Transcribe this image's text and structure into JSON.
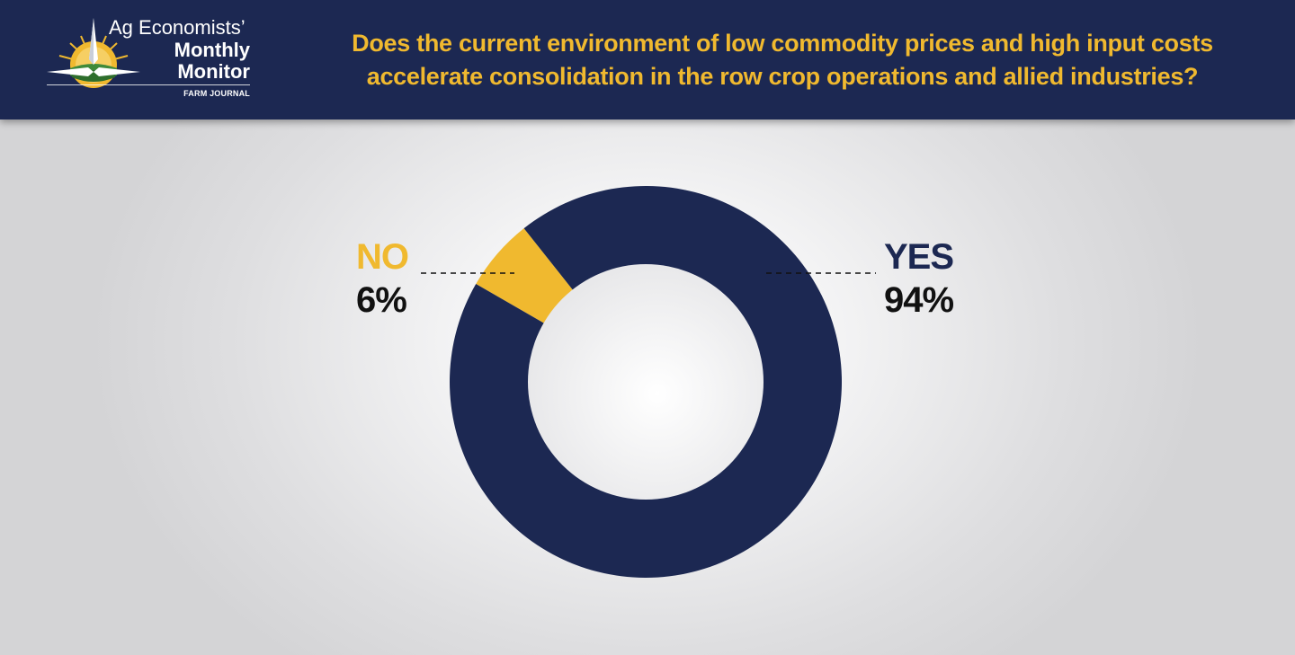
{
  "header": {
    "logo": {
      "line1": "Ag Economists’",
      "line2": "Monthly",
      "line3": "Monitor",
      "publisher": "FARM JOURNAL"
    },
    "question": "Does the current environment of low commodity prices and high input costs accelerate consolidation in the row crop operations and allied industries?"
  },
  "colors": {
    "header_bg": "#1c2852",
    "accent_gold": "#f0b92f",
    "yes_navy": "#1c2852",
    "no_gold": "#f0b92f",
    "label_text": "#111111"
  },
  "chart_data": {
    "type": "pie",
    "variant": "donut",
    "title": "",
    "slices": [
      {
        "label": "NO",
        "value": 6,
        "display": "6%",
        "color": "#f0b92f"
      },
      {
        "label": "YES",
        "value": 94,
        "display": "94%",
        "color": "#1c2852"
      }
    ],
    "legend_placement": "callouts with dashed leader lines"
  }
}
